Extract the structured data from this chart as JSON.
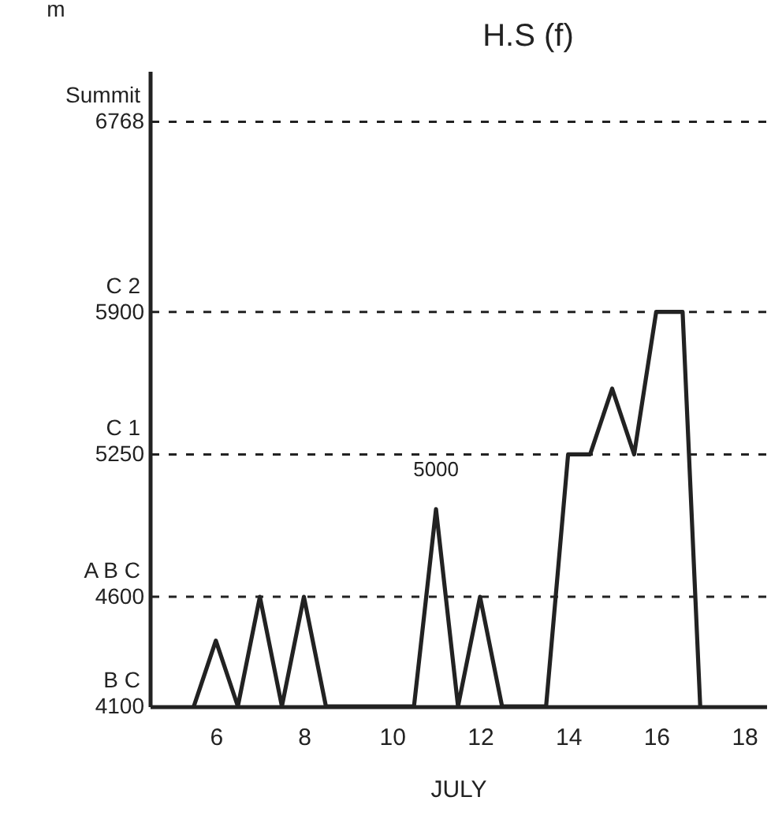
{
  "chart_data": {
    "type": "line",
    "title": "H.S (f)",
    "xlabel": "JULY",
    "ylabel": "m",
    "x": [
      5.5,
      6,
      6.5,
      7,
      7.5,
      8,
      8.5,
      10.5,
      11,
      11.5,
      12,
      12.5,
      13.5,
      14,
      14.5,
      15,
      15.5,
      16,
      16.6,
      17
    ],
    "series": [
      {
        "color": "#222222",
        "values": [
          4100,
          4400,
          4100,
          4600,
          4100,
          4600,
          4100,
          4100,
          5000,
          4100,
          4600,
          4100,
          4100,
          5250,
          5250,
          5550,
          5250,
          5900,
          5900,
          4100
        ]
      }
    ],
    "xlim": [
      4.5,
      18.5
    ],
    "xticks": [
      6,
      8,
      10,
      12,
      14,
      16,
      18
    ],
    "ylim": [
      4100,
      7000
    ],
    "yticks": [
      4100,
      4600,
      5250,
      5900,
      6768
    ],
    "ref_lines": [
      {
        "axis": "y",
        "value": 4600,
        "label": "A B C",
        "line_style": "dashed"
      },
      {
        "axis": "y",
        "value": 5250,
        "label": "C 1",
        "line_style": "dashed"
      },
      {
        "axis": "y",
        "value": 5900,
        "label": "C 2",
        "line_style": "dashed"
      },
      {
        "axis": "y",
        "value": 6768,
        "label": "Summit",
        "line_style": "dashed"
      }
    ],
    "line_style": "solid",
    "marker": "none",
    "annotations": [
      "B C",
      {
        "text": "5000",
        "x": 11,
        "y": 5000
      }
    ]
  }
}
